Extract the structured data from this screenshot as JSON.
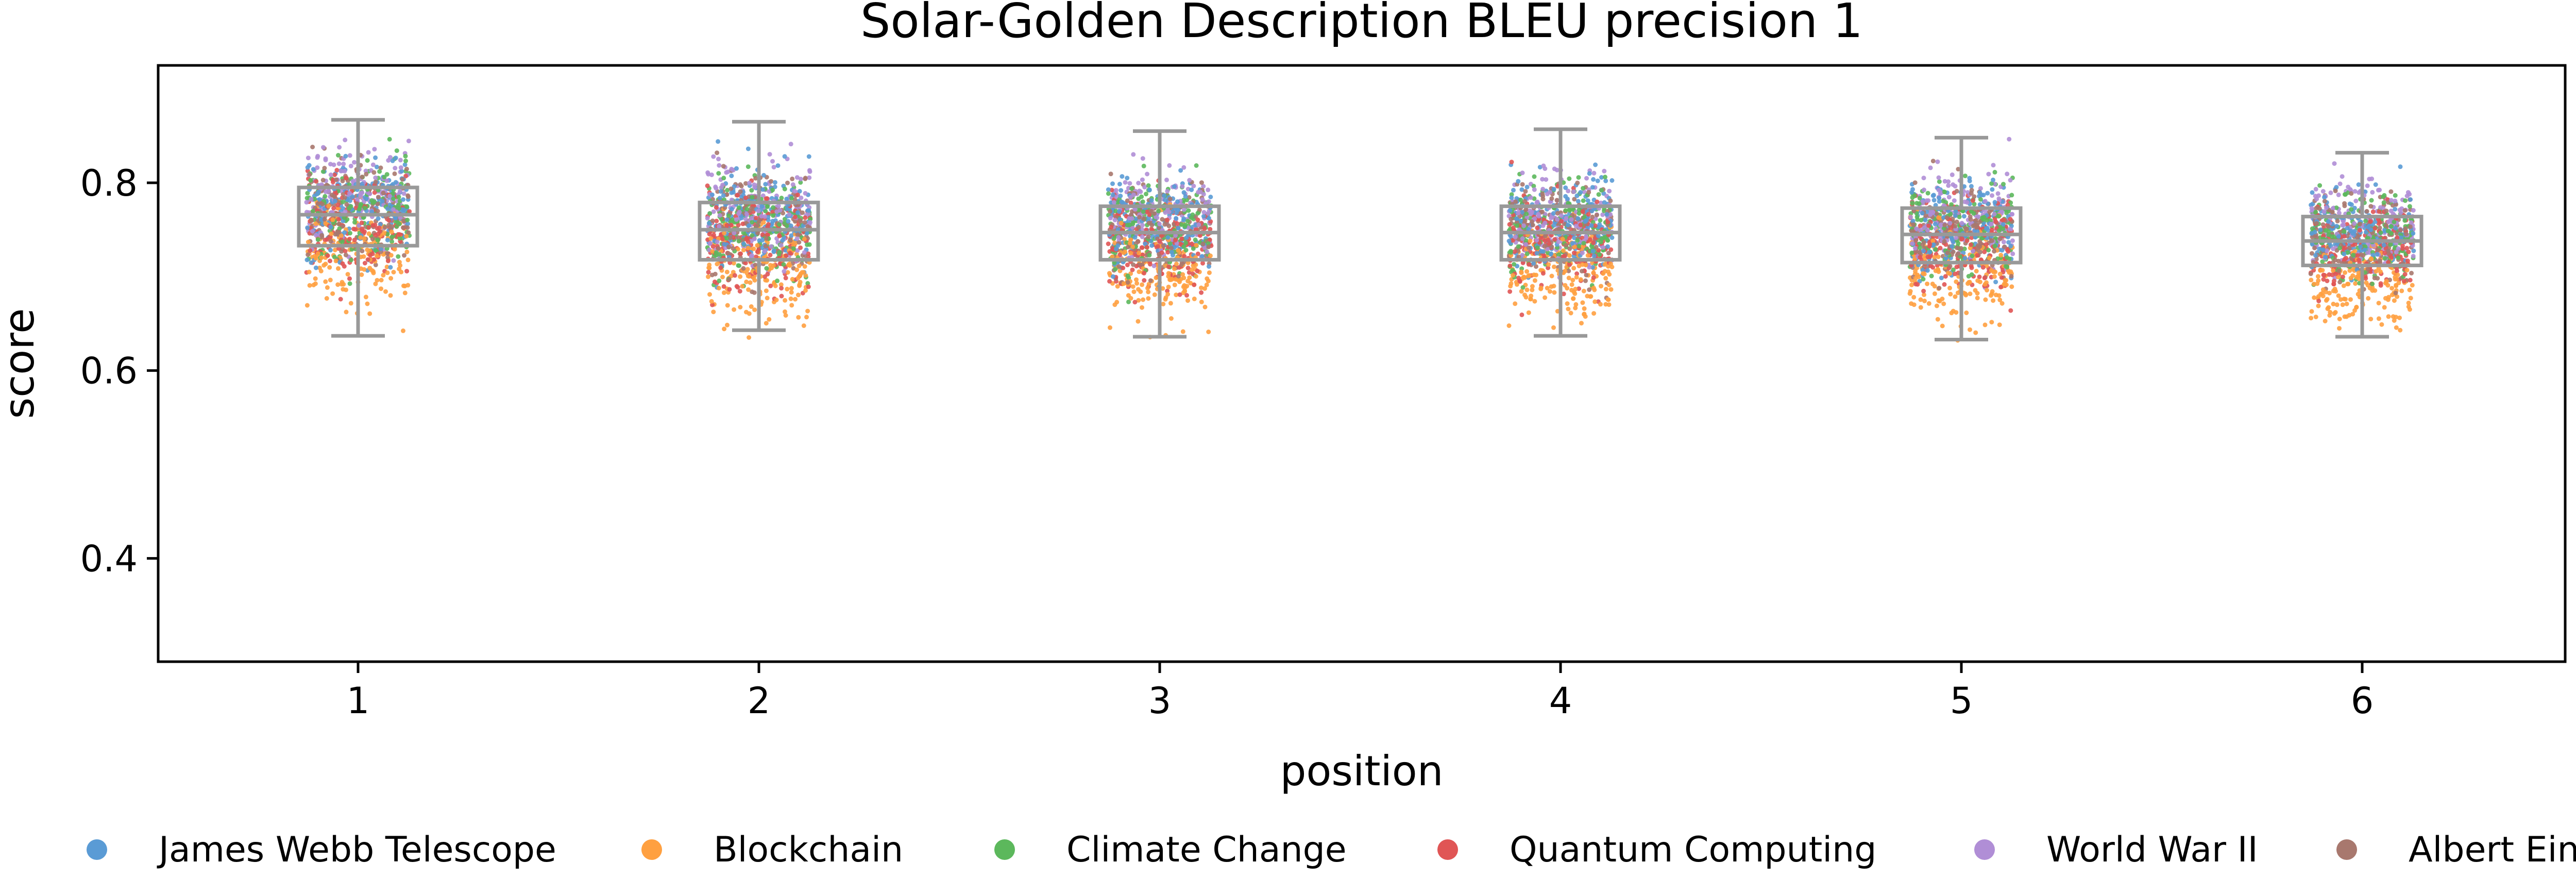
{
  "chart_data": {
    "type": "box_strip",
    "title": "Solar-Golden Description BLEU precision 1",
    "xlabel": "position",
    "ylabel": "score",
    "categories": [
      "1",
      "2",
      "3",
      "4",
      "5",
      "6"
    ],
    "ylim": [
      0.29,
      0.925
    ],
    "yticks": [
      0.4,
      0.6,
      0.8
    ],
    "grid": false,
    "legend_position": "bottom",
    "box_color": "#999999",
    "boxes": [
      {
        "category": "1",
        "whisker_low": 0.637,
        "q1": 0.733,
        "median": 0.766,
        "q3": 0.795,
        "whisker_high": 0.867
      },
      {
        "category": "2",
        "whisker_low": 0.643,
        "q1": 0.718,
        "median": 0.75,
        "q3": 0.779,
        "whisker_high": 0.865
      },
      {
        "category": "3",
        "whisker_low": 0.636,
        "q1": 0.718,
        "median": 0.747,
        "q3": 0.775,
        "whisker_high": 0.855
      },
      {
        "category": "4",
        "whisker_low": 0.637,
        "q1": 0.718,
        "median": 0.747,
        "q3": 0.775,
        "whisker_high": 0.857
      },
      {
        "category": "5",
        "whisker_low": 0.633,
        "q1": 0.715,
        "median": 0.745,
        "q3": 0.773,
        "whisker_high": 0.848
      },
      {
        "category": "6",
        "whisker_low": 0.636,
        "q1": 0.712,
        "median": 0.738,
        "q3": 0.764,
        "whisker_high": 0.832
      }
    ],
    "series": [
      {
        "name": "James Webb Telescope",
        "color": "#5a9bd5",
        "mean_offset": 0.01
      },
      {
        "name": "Blockchain",
        "color": "#ffa040",
        "mean_offset": -0.045
      },
      {
        "name": "Climate Change",
        "color": "#5cb85c",
        "mean_offset": 0.005
      },
      {
        "name": "Quantum Computing",
        "color": "#e05555",
        "mean_offset": -0.01
      },
      {
        "name": "World War II",
        "color": "#b08ed6",
        "mean_offset": 0.02
      },
      {
        "name": "Albert Einstein",
        "color": "#a8786e",
        "mean_offset": 0.005
      }
    ],
    "points_per_series": 170
  }
}
